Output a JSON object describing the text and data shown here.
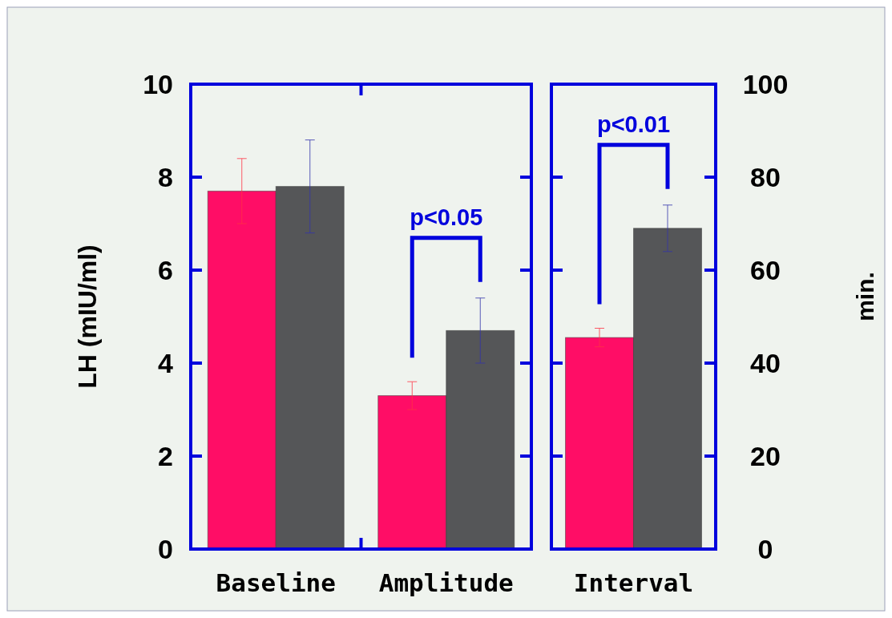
{
  "chart_data": [
    {
      "type": "bar",
      "categories": [
        "Baseline",
        "Amplitude"
      ],
      "ylabel": "LH (mIU/ml)",
      "ylim": [
        0,
        10
      ],
      "yticks": [
        0,
        2,
        4,
        6,
        8,
        10
      ],
      "series": [
        {
          "color": "#ff0d66",
          "values": [
            7.7,
            3.3
          ],
          "errors": [
            0.7,
            0.3
          ]
        },
        {
          "color": "#555658",
          "values": [
            7.8,
            4.7
          ],
          "errors": [
            1.0,
            0.7
          ]
        }
      ],
      "annotations": [
        "p<0.05"
      ]
    },
    {
      "type": "bar",
      "categories": [
        "Interval"
      ],
      "y2label": "min.",
      "y2lim": [
        0,
        100
      ],
      "y2ticks": [
        0,
        20,
        40,
        60,
        80,
        100
      ],
      "series": [
        {
          "color": "#ff0d66",
          "values": [
            45.5
          ],
          "errors": [
            2
          ],
          "axis": "y2"
        },
        {
          "color": "#555658",
          "values": [
            69
          ],
          "errors": [
            5
          ],
          "axis": "y2"
        }
      ],
      "annotations": [
        "p<0.01"
      ]
    }
  ]
}
